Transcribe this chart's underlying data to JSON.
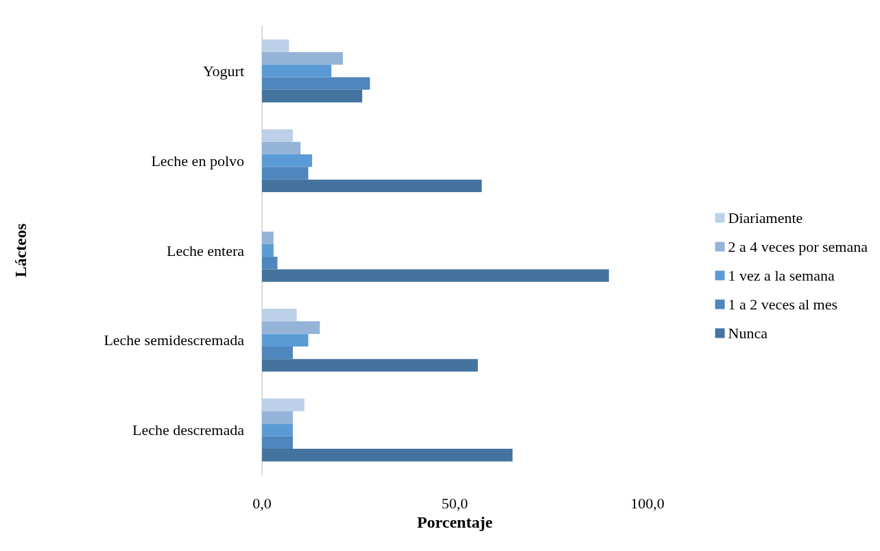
{
  "chart_data": {
    "type": "bar",
    "orientation": "horizontal",
    "xlabel": "Porcentaje",
    "ylabel": "Lácteos",
    "categories": [
      "Yogurt",
      "Leche en polvo",
      "Leche entera",
      "Leche semidescremada",
      "Leche descremada"
    ],
    "series": [
      {
        "name": "Diariamente",
        "color": "#bdd0e9",
        "values": [
          7,
          8,
          0,
          9,
          11
        ]
      },
      {
        "name": "2 a 4 veces por semana",
        "color": "#95b3d7",
        "values": [
          21,
          10,
          3,
          15,
          8
        ]
      },
      {
        "name": "1 vez a la semana",
        "color": "#5b9bd5",
        "values": [
          18,
          13,
          3,
          12,
          8
        ]
      },
      {
        "name": "1 a 2 veces al mes",
        "color": "#4f86bd",
        "values": [
          28,
          12,
          4,
          8,
          8
        ]
      },
      {
        "name": "Nunca",
        "color": "#44739f",
        "values": [
          26,
          57,
          90,
          56,
          65
        ]
      }
    ],
    "xlim": [
      0,
      100
    ],
    "xticks": [
      {
        "value": 0,
        "label": "0,0"
      },
      {
        "value": 50,
        "label": "50,0"
      },
      {
        "value": 100,
        "label": "100,0"
      }
    ],
    "grid": false,
    "legend": "right"
  }
}
